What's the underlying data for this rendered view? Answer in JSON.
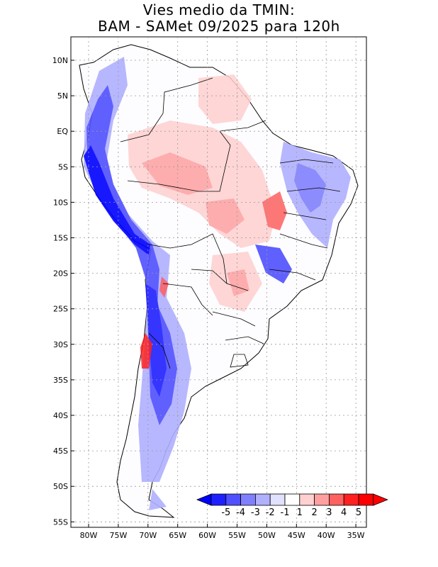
{
  "title": {
    "line1": "Vies medio da TMIN:",
    "line2": "BAM - SAMet 09/2025  para 120h"
  },
  "axes": {
    "lat_labels": [
      "10N",
      "5N",
      "EQ",
      "5S",
      "10S",
      "15S",
      "20S",
      "25S",
      "30S",
      "35S",
      "40S",
      "45S",
      "50S",
      "55S"
    ],
    "lon_labels": [
      "80W",
      "75W",
      "70W",
      "65W",
      "60W",
      "55W",
      "50W",
      "45W",
      "40W",
      "35W"
    ]
  },
  "colorbar": {
    "labels": [
      "-5",
      "-4",
      "-3",
      "-2",
      "-1",
      "1",
      "2",
      "3",
      "4",
      "5"
    ],
    "colors": [
      "#2020ff",
      "#5050ff",
      "#8080ff",
      "#b0b0ff",
      "#e0e0ff",
      "#ffffff",
      "#ffd0d0",
      "#ffa0a0",
      "#ff6060",
      "#ff2020",
      "#ff0000"
    ],
    "low_color": "#0000ff",
    "high_color": "#ff0000"
  },
  "palette": {
    "land": "#ffffff",
    "outline": "#000000",
    "grid": "#999999"
  }
}
